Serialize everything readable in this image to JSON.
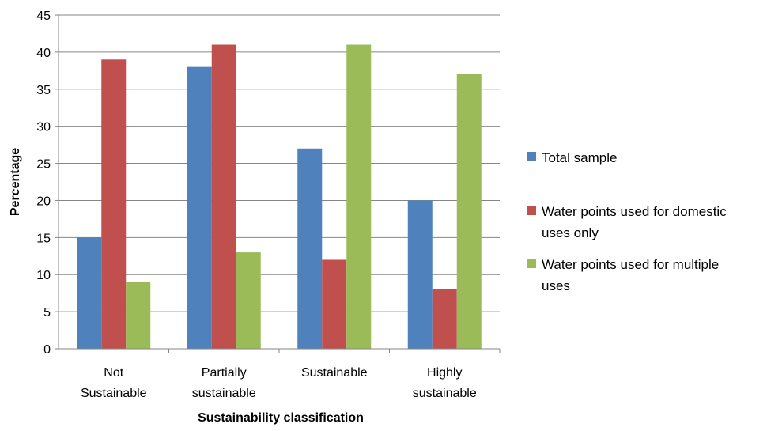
{
  "chart_data": {
    "type": "bar",
    "title": "",
    "xlabel": "Sustainability classification",
    "ylabel": "Percentage",
    "ylim": [
      0,
      45
    ],
    "yticks": [
      0,
      5,
      10,
      15,
      20,
      25,
      30,
      35,
      40,
      45
    ],
    "grid": true,
    "legend_position": "right",
    "categories": [
      [
        "Not",
        "Sustainable"
      ],
      [
        "Partially",
        "sustainable"
      ],
      [
        "Sustainable"
      ],
      [
        "Highly",
        "sustainable"
      ]
    ],
    "series": [
      {
        "name": "Total sample",
        "legend_lines": [
          "Total sample"
        ],
        "color": "#4f81bd",
        "values": [
          15,
          38,
          27,
          20
        ]
      },
      {
        "name": "Water points used for domestic uses only",
        "legend_lines": [
          "Water points used for domestic",
          "uses only"
        ],
        "color": "#c0504d",
        "values": [
          39,
          41,
          12,
          8
        ]
      },
      {
        "name": "Water points used for multiple uses",
        "legend_lines": [
          "Water points used for multiple",
          "uses"
        ],
        "color": "#9bbb59",
        "values": [
          9,
          13,
          41,
          37
        ]
      }
    ]
  }
}
